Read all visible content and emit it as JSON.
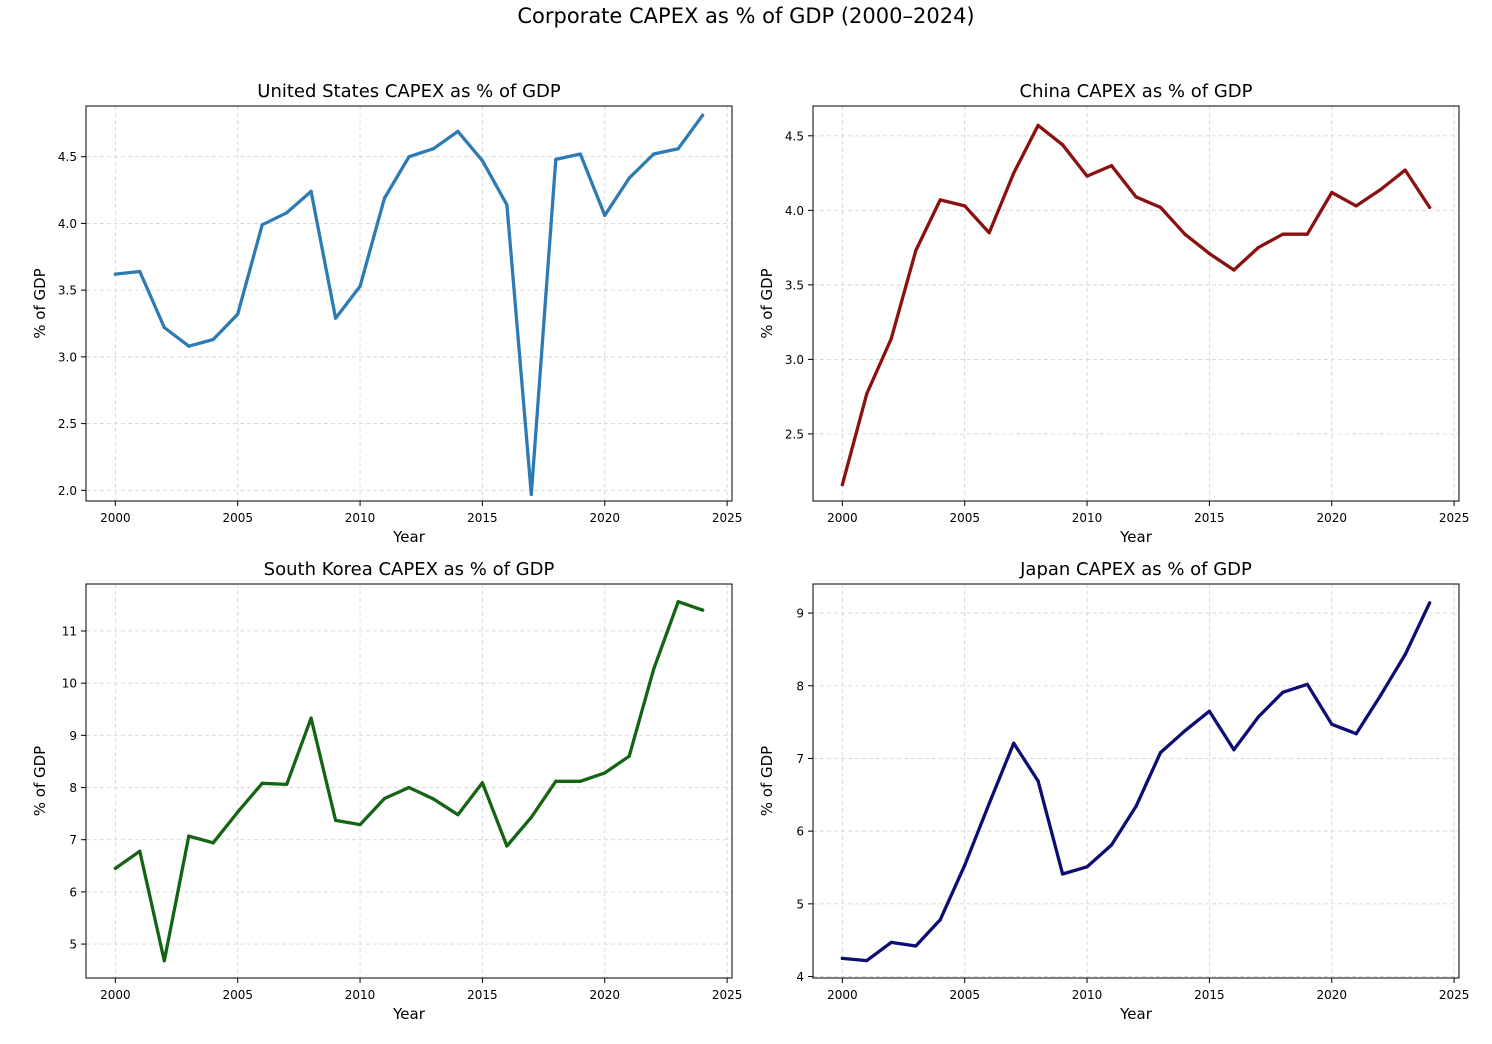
{
  "title": "Corporate CAPEX as % of GDP (2000–2024)",
  "chart_data": [
    {
      "type": "line",
      "title": "United States CAPEX as % of GDP",
      "xlabel": "Year",
      "ylabel": "% of GDP",
      "color": "#2e7bb4",
      "xlim": [
        1998.8,
        2025.2
      ],
      "ylim": [
        1.92,
        4.88
      ],
      "xticks": [
        2000,
        2005,
        2010,
        2015,
        2020,
        2025
      ],
      "yticks": [
        2.0,
        2.5,
        3.0,
        3.5,
        4.0,
        4.5
      ],
      "ytick_labels": [
        "2.0",
        "2.5",
        "3.0",
        "3.5",
        "4.0",
        "4.5"
      ],
      "grid": true,
      "x": [
        2000,
        2001,
        2002,
        2003,
        2004,
        2005,
        2006,
        2007,
        2008,
        2009,
        2010,
        2011,
        2012,
        2013,
        2014,
        2015,
        2016,
        2017,
        2018,
        2019,
        2020,
        2021,
        2022,
        2023,
        2024
      ],
      "values": [
        3.62,
        3.64,
        3.22,
        3.08,
        3.13,
        3.32,
        3.99,
        4.08,
        4.24,
        3.29,
        3.53,
        4.19,
        4.5,
        4.56,
        4.69,
        4.47,
        4.14,
        1.97,
        4.48,
        4.52,
        4.06,
        4.34,
        4.52,
        4.56,
        4.81
      ]
    },
    {
      "type": "line",
      "title": "China CAPEX as % of GDP",
      "xlabel": "Year",
      "ylabel": "% of GDP",
      "color": "#8b1010",
      "xlim": [
        1998.8,
        2025.2
      ],
      "ylim": [
        2.05,
        4.7
      ],
      "xticks": [
        2000,
        2005,
        2010,
        2015,
        2020,
        2025
      ],
      "yticks": [
        2.5,
        3.0,
        3.5,
        4.0,
        4.5
      ],
      "ytick_labels": [
        "2.5",
        "3.0",
        "3.5",
        "4.0",
        "4.5"
      ],
      "grid": true,
      "x": [
        2000,
        2001,
        2002,
        2003,
        2004,
        2005,
        2006,
        2007,
        2008,
        2009,
        2010,
        2011,
        2012,
        2013,
        2014,
        2015,
        2016,
        2017,
        2018,
        2019,
        2020,
        2021,
        2022,
        2023,
        2024
      ],
      "values": [
        2.16,
        2.77,
        3.14,
        3.73,
        4.07,
        4.03,
        3.85,
        4.25,
        4.57,
        4.44,
        4.23,
        4.3,
        4.09,
        4.02,
        3.84,
        3.71,
        3.6,
        3.75,
        3.84,
        3.84,
        4.12,
        4.03,
        4.14,
        4.27,
        4.02
      ]
    },
    {
      "type": "line",
      "title": "South Korea CAPEX as % of GDP",
      "xlabel": "Year",
      "ylabel": "% of GDP",
      "color": "#146414",
      "xlim": [
        1998.8,
        2025.2
      ],
      "ylim": [
        4.35,
        11.9
      ],
      "xticks": [
        2000,
        2005,
        2010,
        2015,
        2020,
        2025
      ],
      "yticks": [
        5,
        6,
        7,
        8,
        9,
        10,
        11
      ],
      "ytick_labels": [
        "5",
        "6",
        "7",
        "8",
        "9",
        "10",
        "11"
      ],
      "grid": true,
      "x": [
        2000,
        2001,
        2002,
        2003,
        2004,
        2005,
        2006,
        2007,
        2008,
        2009,
        2010,
        2011,
        2012,
        2013,
        2014,
        2015,
        2016,
        2017,
        2018,
        2019,
        2020,
        2021,
        2022,
        2023,
        2024
      ],
      "values": [
        6.45,
        6.78,
        4.68,
        7.07,
        6.94,
        7.53,
        8.08,
        8.06,
        9.33,
        7.37,
        7.29,
        7.79,
        8.0,
        7.78,
        7.48,
        8.09,
        6.88,
        7.43,
        8.12,
        8.12,
        8.28,
        8.6,
        10.27,
        11.56,
        11.4
      ]
    },
    {
      "type": "line",
      "title": "Japan CAPEX as % of GDP",
      "xlabel": "Year",
      "ylabel": "% of GDP",
      "color": "#0d0d73",
      "xlim": [
        1998.8,
        2025.2
      ],
      "ylim": [
        3.98,
        9.4
      ],
      "xticks": [
        2000,
        2005,
        2010,
        2015,
        2020,
        2025
      ],
      "yticks": [
        4,
        5,
        6,
        7,
        8,
        9
      ],
      "ytick_labels": [
        "4",
        "5",
        "6",
        "7",
        "8",
        "9"
      ],
      "grid": true,
      "x": [
        2000,
        2001,
        2002,
        2003,
        2004,
        2005,
        2006,
        2007,
        2008,
        2009,
        2010,
        2011,
        2012,
        2013,
        2014,
        2015,
        2016,
        2017,
        2018,
        2019,
        2020,
        2021,
        2022,
        2023,
        2024
      ],
      "values": [
        4.25,
        4.22,
        4.47,
        4.42,
        4.78,
        5.53,
        6.38,
        7.21,
        6.69,
        5.41,
        5.51,
        5.81,
        6.34,
        7.08,
        7.38,
        7.65,
        7.12,
        7.57,
        7.91,
        8.02,
        7.47,
        7.34,
        7.87,
        8.43,
        9.14
      ]
    }
  ]
}
